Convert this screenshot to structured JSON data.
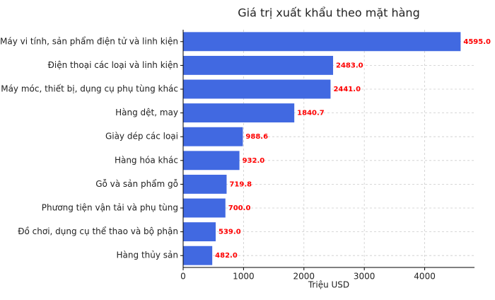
{
  "chart_data": {
    "type": "barh",
    "title": "Giá trị xuất khẩu theo mặt hàng",
    "xlabel": "Triệu USD",
    "categories": [
      "Máy vi tính, sản phẩm điện tử và linh kiện",
      "Điện thoại các loại và linh kiện",
      "Máy móc, thiết bị, dụng cụ phụ tùng khác",
      "Hàng dệt, may",
      "Giày dép các loại",
      "Hàng hóa khác",
      "Gỗ và sản phẩm gỗ",
      "Phương tiện vận tải và phụ tùng",
      "Đồ chơi, dụng cụ thể thao và bộ phận",
      "Hàng thủy sản"
    ],
    "values": [
      4595.0,
      2483.0,
      2441.0,
      1840.7,
      988.6,
      932.0,
      719.8,
      700.0,
      539.0,
      482.0
    ],
    "value_labels": [
      "4595.0",
      "2483.0",
      "2441.0",
      "1840.7",
      "988.6",
      "932.0",
      "719.8",
      "700.0",
      "539.0",
      "482.0"
    ],
    "color": "#4169e1",
    "label_color": "#ff0000",
    "xlim": [
      0,
      4824.75
    ],
    "xticks": [
      0,
      1000,
      2000,
      3000,
      4000
    ],
    "grid": true
  }
}
